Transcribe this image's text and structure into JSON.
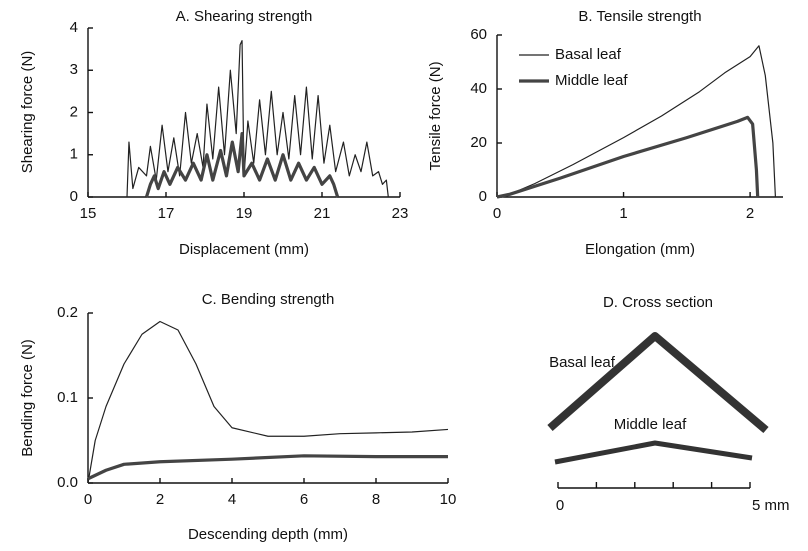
{
  "chart_data": [
    {
      "type": "line",
      "title": "A. Shearing strength",
      "x_label": "Displacement (mm)",
      "y_label": "Shearing force (N)",
      "xlim": [
        15,
        23
      ],
      "xticks": [
        15,
        17,
        19,
        21,
        23
      ],
      "ylim": [
        0,
        4
      ],
      "yticks": [
        0,
        1,
        2,
        3,
        4
      ],
      "series": [
        {
          "color": "#222222",
          "linewidth": 1.2,
          "x": [
            16.0,
            16.05,
            16.15,
            16.3,
            16.5,
            16.6,
            16.75,
            16.9,
            17.05,
            17.2,
            17.35,
            17.5,
            17.65,
            17.8,
            17.95,
            18.05,
            18.2,
            18.35,
            18.5,
            18.65,
            18.8,
            18.9,
            18.95,
            19.0,
            19.1,
            19.25,
            19.4,
            19.55,
            19.7,
            19.85,
            20.0,
            20.15,
            20.3,
            20.45,
            20.6,
            20.75,
            20.9,
            21.05,
            21.2,
            21.35,
            21.55,
            21.7,
            21.85,
            22.0,
            22.15,
            22.3,
            22.45,
            22.55,
            22.65,
            22.7
          ],
          "values": [
            0,
            1.3,
            0.2,
            0.7,
            0.5,
            1.2,
            0.4,
            1.7,
            0.6,
            1.4,
            0.5,
            2.0,
            0.8,
            1.5,
            0.7,
            2.2,
            0.9,
            2.6,
            1.0,
            3.0,
            1.5,
            3.6,
            3.7,
            0.5,
            1.8,
            0.8,
            2.3,
            1.0,
            2.5,
            1.0,
            2.0,
            0.9,
            2.4,
            1.0,
            2.6,
            0.9,
            2.4,
            0.8,
            1.7,
            0.6,
            1.3,
            0.5,
            1.0,
            0.6,
            1.3,
            0.5,
            0.6,
            0.3,
            0.4,
            0
          ]
        },
        {
          "color": "#444444",
          "linewidth": 3.2,
          "x": [
            16.5,
            16.6,
            16.7,
            16.8,
            16.95,
            17.1,
            17.3,
            17.5,
            17.7,
            17.9,
            18.05,
            18.2,
            18.4,
            18.55,
            18.7,
            18.85,
            18.95,
            19.0,
            19.2,
            19.4,
            19.6,
            19.8,
            20.0,
            20.2,
            20.4,
            20.6,
            20.8,
            21.0,
            21.2,
            21.3,
            21.4
          ],
          "values": [
            0,
            0.3,
            0.5,
            0.2,
            0.6,
            0.3,
            0.7,
            0.4,
            0.8,
            0.4,
            1.0,
            0.4,
            1.1,
            0.5,
            1.3,
            0.6,
            1.5,
            0.5,
            0.8,
            0.4,
            0.9,
            0.4,
            1.0,
            0.4,
            0.8,
            0.4,
            0.7,
            0.3,
            0.5,
            0.3,
            0
          ]
        }
      ]
    },
    {
      "type": "line",
      "title": "B. Tensile strength",
      "x_label": "Elongation (mm)",
      "y_label": "Tensile force (N)",
      "xlim": [
        0,
        2.26
      ],
      "xticks": [
        0,
        1,
        2
      ],
      "ylim": [
        0,
        60
      ],
      "yticks": [
        0,
        20,
        40,
        60
      ],
      "legend": "top-left",
      "series": [
        {
          "name": "Basal leaf",
          "color": "#222222",
          "linewidth": 1.2,
          "x": [
            0,
            0.1,
            0.3,
            0.6,
            1.0,
            1.3,
            1.6,
            1.8,
            2.0,
            2.07,
            2.12,
            2.18,
            2.2
          ],
          "values": [
            0,
            1,
            5,
            12,
            22,
            30,
            39,
            46,
            52,
            56,
            45,
            20,
            0
          ]
        },
        {
          "name": "Middle leaf",
          "color": "#444444",
          "linewidth": 3.2,
          "x": [
            0,
            0.1,
            0.5,
            1.0,
            1.5,
            1.9,
            1.98,
            2.02,
            2.05,
            2.06
          ],
          "values": [
            0,
            1,
            7,
            15,
            22,
            28,
            29.5,
            27,
            10,
            0
          ]
        }
      ]
    },
    {
      "type": "line",
      "title": "C. Bending strength",
      "x_label": "Descending depth (mm)",
      "y_label": "Bending force (N)",
      "xlim": [
        0,
        10
      ],
      "xticks": [
        0,
        2,
        4,
        6,
        8,
        10
      ],
      "ylim": [
        0,
        0.2
      ],
      "yticks": [
        {
          "value": 0,
          "label": "0.0"
        },
        0.1,
        0.2
      ],
      "series": [
        {
          "color": "#222222",
          "linewidth": 1.2,
          "x": [
            0,
            0.2,
            0.5,
            1,
            1.5,
            2,
            2.5,
            3,
            3.5,
            4,
            5,
            6,
            7,
            8,
            9,
            10
          ],
          "values": [
            0,
            0.05,
            0.09,
            0.14,
            0.175,
            0.19,
            0.18,
            0.14,
            0.09,
            0.065,
            0.055,
            0.055,
            0.058,
            0.059,
            0.06,
            0.063
          ]
        },
        {
          "color": "#444444",
          "linewidth": 3.2,
          "x": [
            0,
            0.5,
            1,
            2,
            4,
            6,
            8,
            10
          ],
          "values": [
            0.005,
            0.015,
            0.022,
            0.025,
            0.028,
            0.032,
            0.031,
            0.031
          ]
        }
      ]
    },
    {
      "type": "cross_section",
      "title": "D. Cross section",
      "labels": [
        "Basal leaf",
        "Middle leaf"
      ],
      "xlim": [
        0,
        5
      ],
      "xticks": [
        0,
        {
          "value": 5,
          "label": "5 mm"
        }
      ]
    }
  ]
}
